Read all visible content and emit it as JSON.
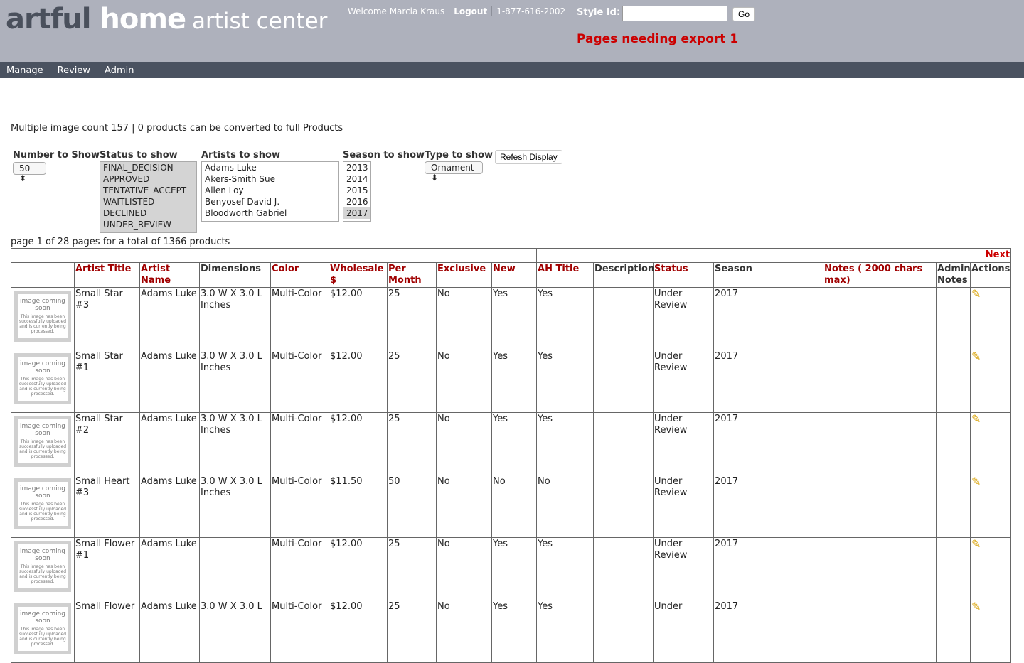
{
  "header": {
    "logo_a": "artful",
    "logo_b": "home",
    "subtitle": "artist center",
    "welcome": "Welcome Marcia Kraus",
    "logout": "Logout",
    "phone": "1-877-616-2002",
    "style_id_label": "Style Id:",
    "style_id_value": "",
    "go": "Go",
    "export_msg": "Pages needing export 1"
  },
  "nav": [
    "Manage",
    "Review",
    "Admin"
  ],
  "summary": "Multiple image count 157 | 0 products can be converted to full Products",
  "filters": {
    "number_label": "Number to Show",
    "number_value": "50",
    "status_label": "Status to show",
    "status_options": [
      "FINAL_DECISION",
      "APPROVED",
      "TENTATIVE_ACCEPT",
      "WAITLISTED",
      "DECLINED",
      "UNDER_REVIEW"
    ],
    "artists_label": "Artists to show",
    "artist_options": [
      "Adams Luke",
      "Akers-Smith Sue",
      "Allen Loy",
      "Benyosef David J.",
      "Bloodworth Gabriel"
    ],
    "season_label": "Season to show",
    "season_options": [
      "2013",
      "2014",
      "2015",
      "2016",
      "2017"
    ],
    "season_selected": "2017",
    "type_label": "Type to show",
    "type_value": "Ornament",
    "refresh": "Refesh Display"
  },
  "paging": "page 1 of 28 pages for a total of 1366 products",
  "next": "Next",
  "columns": [
    "",
    "Artist Title",
    "Artist Name",
    "Dimensions",
    "Color",
    "Wholesale $",
    "Per Month",
    "Exclusive",
    "New",
    "AH Title",
    "Description",
    "Status",
    "Season",
    "Notes ( 2000 chars max)",
    "Admin Notes",
    "Actions"
  ],
  "placeholder": {
    "title": "image coming soon",
    "body": "This image has been successfully uploaded and is currently being processed."
  },
  "rows": [
    [
      "Small Star #3",
      "Adams Luke",
      "3.0 W X 3.0 L Inches",
      "Multi-Color",
      "$12.00",
      "25",
      "No",
      "Yes",
      "Yes",
      "",
      "Under Review",
      "2017",
      "",
      ""
    ],
    [
      "Small Star #1",
      "Adams Luke",
      "3.0 W X 3.0 L Inches",
      "Multi-Color",
      "$12.00",
      "25",
      "No",
      "Yes",
      "Yes",
      "",
      "Under Review",
      "2017",
      "",
      ""
    ],
    [
      "Small Star #2",
      "Adams Luke",
      "3.0 W X 3.0 L Inches",
      "Multi-Color",
      "$12.00",
      "25",
      "No",
      "Yes",
      "Yes",
      "",
      "Under Review",
      "2017",
      "",
      ""
    ],
    [
      "Small Heart #3",
      "Adams Luke",
      "3.0 W X 3.0 L Inches",
      "Multi-Color",
      "$11.50",
      "50",
      "No",
      "No",
      "No",
      "",
      "Under Review",
      "2017",
      "",
      ""
    ],
    [
      "Small Flower #1",
      "Adams Luke",
      "",
      "Multi-Color",
      "$12.00",
      "25",
      "No",
      "Yes",
      "Yes",
      "",
      "Under Review",
      "2017",
      "",
      ""
    ],
    [
      "Small Flower",
      "Adams Luke",
      "3.0 W X 3.0 L",
      "Multi-Color",
      "$12.00",
      "25",
      "No",
      "Yes",
      "Yes",
      "",
      "Under",
      "2017",
      "",
      ""
    ]
  ]
}
